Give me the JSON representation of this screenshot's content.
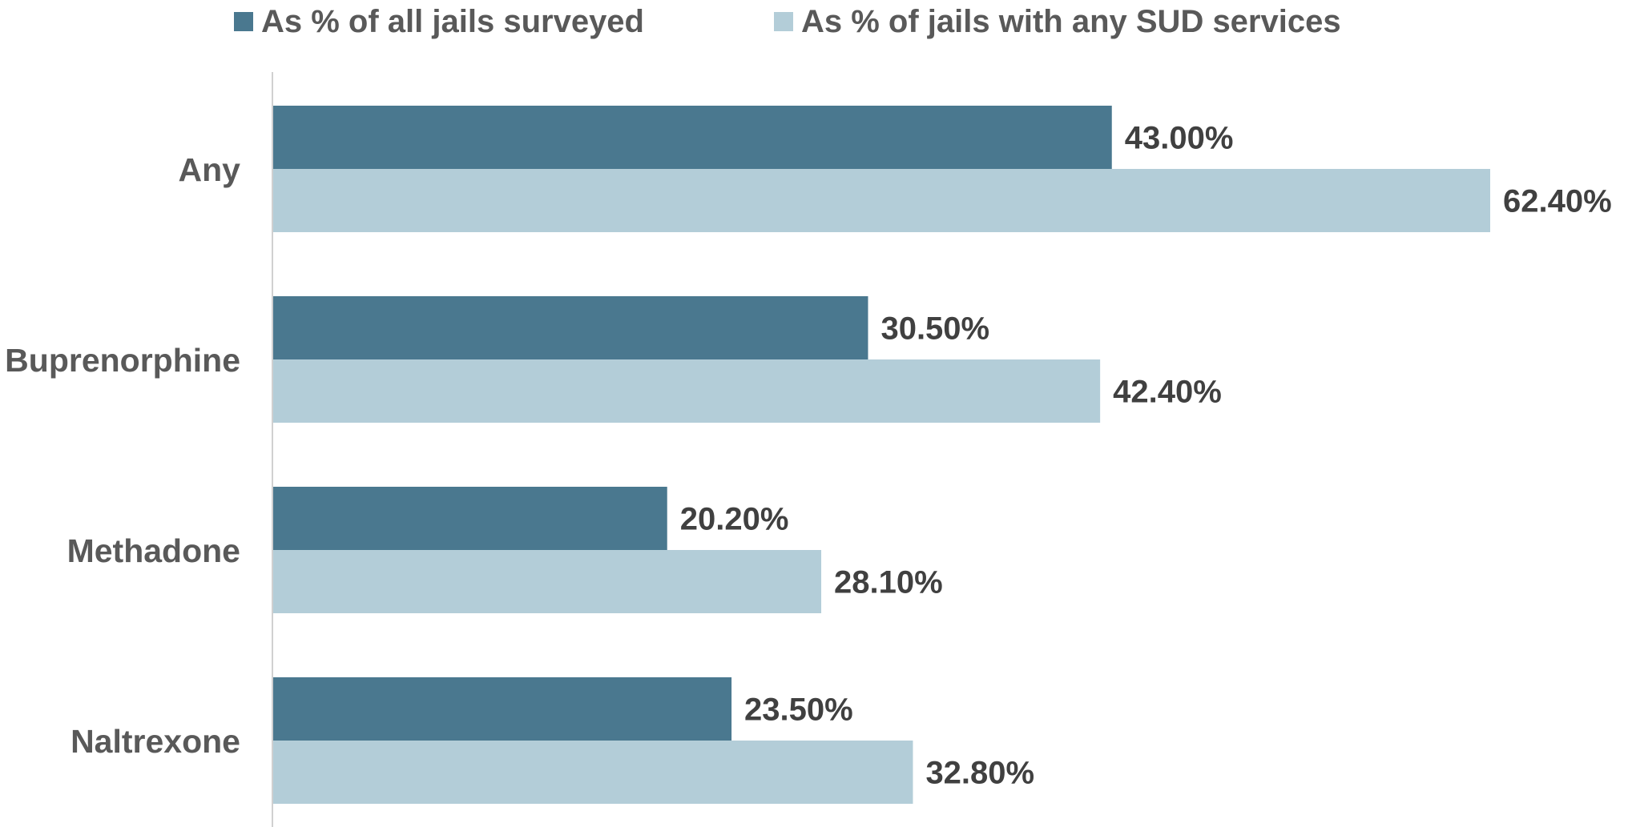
{
  "chart_data": {
    "type": "bar",
    "orientation": "horizontal",
    "categories": [
      "Any",
      "Buprenorphine",
      "Methadone",
      "Naltrexone"
    ],
    "series": [
      {
        "name": "As % of all jails surveyed",
        "color": "#4a788f",
        "values": [
          43.0,
          30.5,
          20.2,
          23.5
        ],
        "labels": [
          "43.00%",
          "30.50%",
          "20.20%",
          "23.50%"
        ]
      },
      {
        "name": "As % of jails with any SUD services",
        "color": "#b3cdd8",
        "values": [
          62.4,
          42.4,
          28.1,
          32.8
        ],
        "labels": [
          "62.40%",
          "42.40%",
          "28.10%",
          "32.80%"
        ]
      }
    ],
    "title": "",
    "xlabel": "",
    "ylabel": "",
    "xlim": [
      0,
      62.4
    ],
    "grid": false,
    "legend_position": "top"
  }
}
